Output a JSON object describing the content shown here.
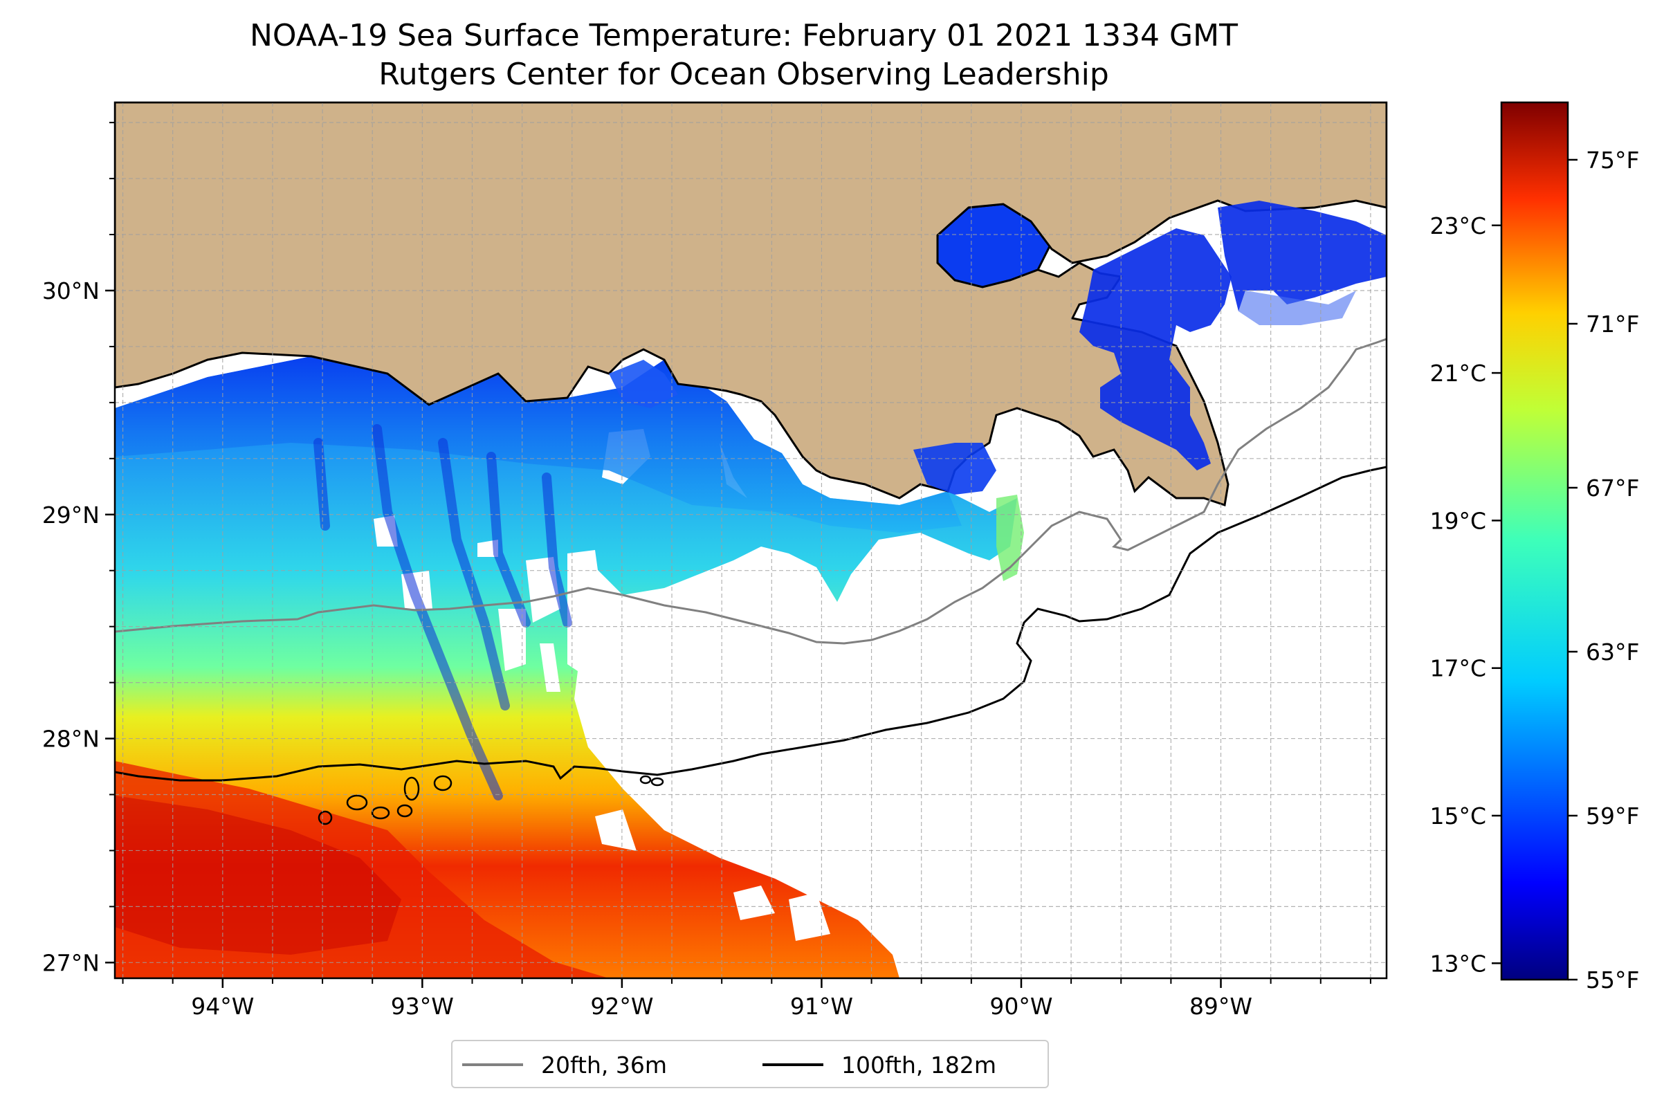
{
  "title": {
    "line1": "NOAA-19 Sea Surface Temperature: February 01 2021 1334 GMT",
    "line2": "Rutgers Center for Ocean Observing Leadership"
  },
  "map": {
    "lon_range": [
      -94.54,
      -88.17
    ],
    "lat_range": [
      26.93,
      30.84
    ],
    "gridlines": true,
    "land_color": "#cfb28a",
    "lat_ticks": [
      {
        "value": 30,
        "label": "30°N"
      },
      {
        "value": 29,
        "label": "29°N"
      },
      {
        "value": 28,
        "label": "28°N"
      },
      {
        "value": 27,
        "label": "27°N"
      }
    ],
    "lon_ticks": [
      {
        "value": -94,
        "label": "94°W"
      },
      {
        "value": -93,
        "label": "93°W"
      },
      {
        "value": -92,
        "label": "92°W"
      },
      {
        "value": -91,
        "label": "91°W"
      },
      {
        "value": -90,
        "label": "90°W"
      },
      {
        "value": -89,
        "label": "89°W"
      }
    ]
  },
  "colorbar": {
    "colormap": "jet",
    "range_F": [
      55,
      76.4
    ],
    "fahrenheit_ticks": [
      {
        "value": 75,
        "label": "75°F"
      },
      {
        "value": 71,
        "label": "71°F"
      },
      {
        "value": 67,
        "label": "67°F"
      },
      {
        "value": 63,
        "label": "63°F"
      },
      {
        "value": 59,
        "label": "59°F"
      },
      {
        "value": 55,
        "label": "55°F"
      }
    ],
    "celsius_ticks": [
      {
        "value": 23,
        "label": "23°C"
      },
      {
        "value": 21,
        "label": "21°C"
      },
      {
        "value": 19,
        "label": "19°C"
      },
      {
        "value": 17,
        "label": "17°C"
      },
      {
        "value": 15,
        "label": "15°C"
      },
      {
        "value": 13,
        "label": "13°C"
      }
    ]
  },
  "legend": {
    "placement": "bottom-center",
    "items": [
      {
        "label": "20fth, 36m",
        "color": "#808080"
      },
      {
        "label": "100fth, 182m",
        "color": "#000000"
      }
    ]
  }
}
